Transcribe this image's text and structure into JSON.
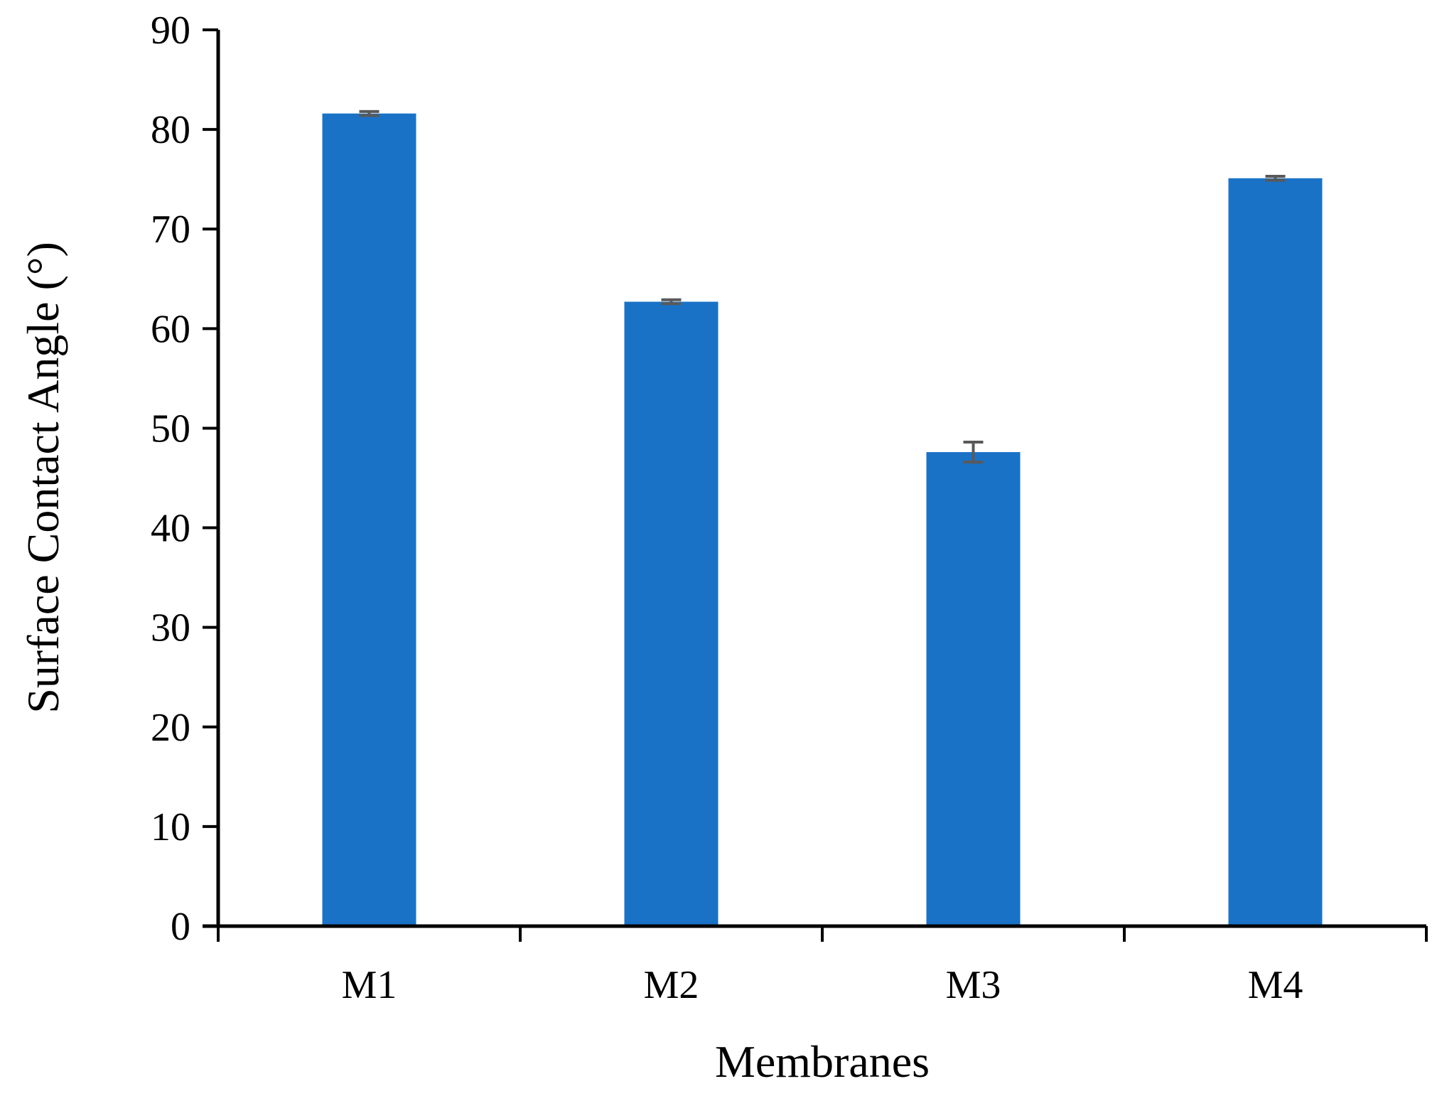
{
  "chart_data": {
    "type": "bar",
    "title": "",
    "xlabel": "Membranes",
    "ylabel": "Surface Contact Angle (°)",
    "categories": [
      "M1",
      "M2",
      "M3",
      "M4"
    ],
    "values": [
      81.6,
      62.7,
      47.6,
      75.1
    ],
    "errors": [
      0.2,
      0.2,
      1.0,
      0.2
    ],
    "ylim": [
      0,
      90
    ],
    "yticks": [
      0,
      10,
      20,
      30,
      40,
      50,
      60,
      70,
      80,
      90
    ],
    "grid": false,
    "colors": {
      "bar": "#1a72c6",
      "error_bar": "#595959",
      "axis": "#000000"
    }
  }
}
